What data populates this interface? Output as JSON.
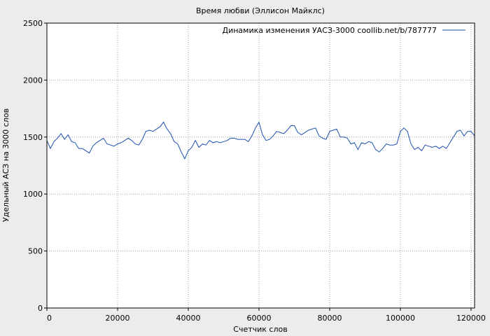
{
  "chart_data": {
    "type": "line",
    "title": "Время любви (Эллисон Майклс)",
    "xlabel": "Счетчик слов",
    "ylabel": "Удельный АСЗ на 3000 слов",
    "xlim": [
      0,
      121000
    ],
    "ylim": [
      0,
      2500
    ],
    "x_ticks": [
      0,
      20000,
      40000,
      60000,
      80000,
      100000,
      120000
    ],
    "y_ticks": [
      0,
      500,
      1000,
      1500,
      2000,
      2500
    ],
    "grid": true,
    "legend_position": "top-right",
    "colors": {
      "background": "#ececec",
      "plot_bg": "#ffffff",
      "line": "#1f4fb0",
      "grid": "#a0a0a0"
    },
    "series": [
      {
        "name": "Динамика изменения УАСЗ-3000 coollib.net/b/787777",
        "x": [
          0,
          1000,
          2000,
          3000,
          4000,
          5000,
          6000,
          7000,
          8000,
          9000,
          10000,
          11000,
          12000,
          13000,
          14000,
          15000,
          16000,
          17000,
          18000,
          19000,
          20000,
          21000,
          22000,
          23000,
          24000,
          25000,
          26000,
          27000,
          28000,
          29000,
          30000,
          31000,
          32000,
          33000,
          34000,
          35000,
          36000,
          37000,
          38000,
          39000,
          40000,
          41000,
          42000,
          43000,
          44000,
          45000,
          46000,
          47000,
          48000,
          49000,
          50000,
          51000,
          52000,
          53000,
          54000,
          55000,
          56000,
          57000,
          58000,
          59000,
          60000,
          61000,
          62000,
          63000,
          64000,
          65000,
          66000,
          67000,
          68000,
          69000,
          70000,
          71000,
          72000,
          73000,
          74000,
          75000,
          76000,
          77000,
          78000,
          79000,
          80000,
          81000,
          82000,
          83000,
          84000,
          85000,
          86000,
          87000,
          88000,
          89000,
          90000,
          91000,
          92000,
          93000,
          94000,
          95000,
          96000,
          97000,
          98000,
          99000,
          100000,
          101000,
          102000,
          103000,
          104000,
          105000,
          106000,
          107000,
          108000,
          109000,
          110000,
          111000,
          112000,
          113000,
          114000,
          115000,
          116000,
          117000,
          118000,
          119000,
          120000,
          121000
        ],
        "y": [
          1470,
          1400,
          1460,
          1490,
          1530,
          1480,
          1520,
          1460,
          1450,
          1400,
          1400,
          1380,
          1360,
          1420,
          1450,
          1470,
          1490,
          1440,
          1430,
          1420,
          1440,
          1450,
          1470,
          1490,
          1470,
          1440,
          1430,
          1480,
          1550,
          1560,
          1550,
          1570,
          1590,
          1630,
          1570,
          1530,
          1460,
          1440,
          1370,
          1310,
          1380,
          1410,
          1470,
          1410,
          1440,
          1430,
          1470,
          1450,
          1460,
          1450,
          1460,
          1470,
          1490,
          1490,
          1480,
          1480,
          1480,
          1460,
          1510,
          1580,
          1630,
          1520,
          1470,
          1480,
          1510,
          1550,
          1540,
          1530,
          1560,
          1600,
          1600,
          1540,
          1520,
          1540,
          1560,
          1570,
          1580,
          1510,
          1490,
          1480,
          1550,
          1560,
          1570,
          1500,
          1500,
          1490,
          1440,
          1450,
          1390,
          1450,
          1440,
          1460,
          1450,
          1390,
          1370,
          1400,
          1440,
          1430,
          1430,
          1440,
          1550,
          1580,
          1550,
          1440,
          1390,
          1410,
          1380,
          1430,
          1420,
          1410,
          1420,
          1400,
          1420,
          1400,
          1450,
          1500,
          1550,
          1560,
          1510,
          1550,
          1550,
          1510
        ]
      }
    ]
  }
}
